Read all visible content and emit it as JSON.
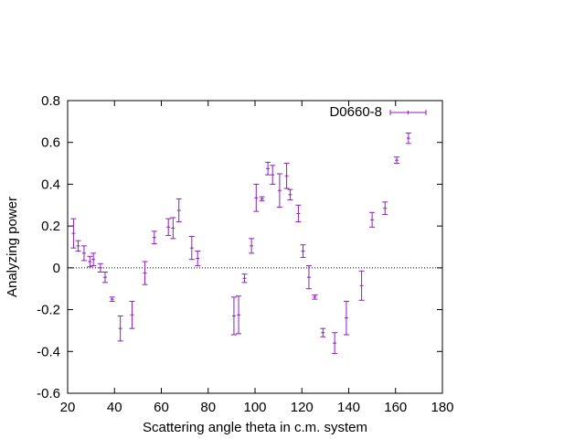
{
  "chart_data": {
    "type": "scatter",
    "title": "",
    "xlabel": "Scattering angle theta in c.m. system",
    "ylabel": "Analyzing power",
    "xlim": [
      20,
      180
    ],
    "ylim": [
      -0.6,
      0.8
    ],
    "x_ticks": [
      20,
      40,
      60,
      80,
      100,
      120,
      140,
      160,
      180
    ],
    "y_ticks": [
      -0.6,
      -0.4,
      -0.2,
      0,
      0.2,
      0.4,
      0.6,
      0.8
    ],
    "x_tick_labels": [
      "20",
      "40",
      "60",
      "80",
      "100",
      "120",
      "140",
      "160",
      "180"
    ],
    "y_tick_labels": [
      "-0.6",
      "-0.4",
      "-0.2",
      "0",
      "0.2",
      "0.4",
      "0.6",
      "0.8"
    ],
    "zero_line": true,
    "grid": false,
    "legend_position": "top-right",
    "series_color": "#8b1fb8",
    "series": [
      {
        "name": "D0660-8",
        "points": [
          {
            "x": 22.5,
            "y": 0.165,
            "err": 0.07
          },
          {
            "x": 24.5,
            "y": 0.105,
            "err": 0.025
          },
          {
            "x": 27.0,
            "y": 0.07,
            "err": 0.035
          },
          {
            "x": 29.5,
            "y": 0.03,
            "err": 0.025
          },
          {
            "x": 31.0,
            "y": 0.04,
            "err": 0.03
          },
          {
            "x": 34.0,
            "y": 0.0,
            "err": 0.02
          },
          {
            "x": 36.0,
            "y": -0.045,
            "err": 0.025
          },
          {
            "x": 39.0,
            "y": -0.15,
            "err": 0.01
          },
          {
            "x": 42.5,
            "y": -0.29,
            "err": 0.06
          },
          {
            "x": 47.5,
            "y": -0.225,
            "err": 0.065
          },
          {
            "x": 53.0,
            "y": -0.025,
            "err": 0.055
          },
          {
            "x": 57.0,
            "y": 0.145,
            "err": 0.03
          },
          {
            "x": 63.0,
            "y": 0.195,
            "err": 0.04
          },
          {
            "x": 65.0,
            "y": 0.19,
            "err": 0.05
          },
          {
            "x": 67.5,
            "y": 0.275,
            "err": 0.055
          },
          {
            "x": 73.0,
            "y": 0.095,
            "err": 0.055
          },
          {
            "x": 75.5,
            "y": 0.045,
            "err": 0.035
          },
          {
            "x": 91.0,
            "y": -0.23,
            "err": 0.09
          },
          {
            "x": 93.0,
            "y": -0.225,
            "err": 0.09
          },
          {
            "x": 95.5,
            "y": -0.05,
            "err": 0.02
          },
          {
            "x": 98.5,
            "y": 0.105,
            "err": 0.035
          },
          {
            "x": 100.5,
            "y": 0.335,
            "err": 0.065
          },
          {
            "x": 103.0,
            "y": 0.33,
            "err": 0.01
          },
          {
            "x": 105.5,
            "y": 0.475,
            "err": 0.03
          },
          {
            "x": 107.5,
            "y": 0.445,
            "err": 0.045
          },
          {
            "x": 110.5,
            "y": 0.37,
            "err": 0.08
          },
          {
            "x": 113.5,
            "y": 0.44,
            "err": 0.06
          },
          {
            "x": 115.0,
            "y": 0.35,
            "err": 0.025
          },
          {
            "x": 118.5,
            "y": 0.26,
            "err": 0.04
          },
          {
            "x": 120.5,
            "y": 0.08,
            "err": 0.03
          },
          {
            "x": 123.0,
            "y": -0.045,
            "err": 0.055
          },
          {
            "x": 125.5,
            "y": -0.14,
            "err": 0.01
          },
          {
            "x": 129.0,
            "y": -0.31,
            "err": 0.02
          },
          {
            "x": 134.0,
            "y": -0.36,
            "err": 0.05
          },
          {
            "x": 139.0,
            "y": -0.24,
            "err": 0.08
          },
          {
            "x": 145.5,
            "y": -0.085,
            "err": 0.07
          },
          {
            "x": 150.0,
            "y": 0.23,
            "err": 0.035
          },
          {
            "x": 155.5,
            "y": 0.285,
            "err": 0.03
          },
          {
            "x": 160.5,
            "y": 0.515,
            "err": 0.015
          },
          {
            "x": 165.5,
            "y": 0.62,
            "err": 0.025
          }
        ]
      }
    ]
  }
}
